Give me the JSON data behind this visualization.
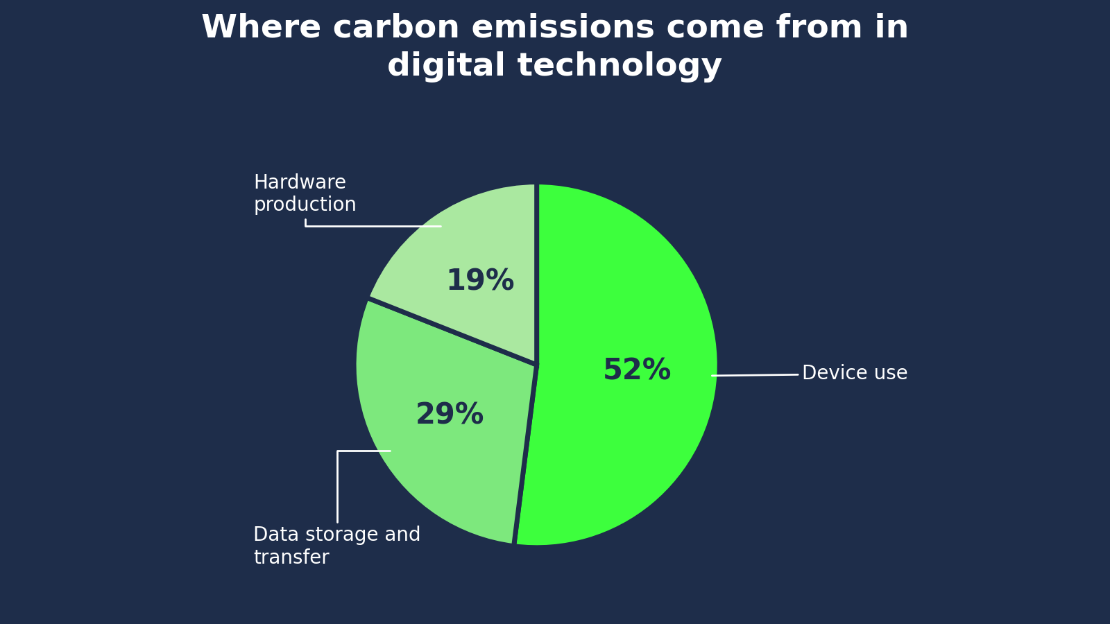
{
  "title": "Where carbon emissions come from in\ndigital technology",
  "slices": [
    52,
    29,
    19
  ],
  "labels": [
    "Device use",
    "Data storage and\ntransfer",
    "Hardware\nproduction"
  ],
  "pct_labels": [
    "52%",
    "29%",
    "19%"
  ],
  "colors": [
    "#3dff3d",
    "#7de87d",
    "#aae8a0"
  ],
  "edge_color": "#1e2d4a",
  "background_color": "#1e2d4a",
  "text_color": "#ffffff",
  "pct_color": "#1e2d4a",
  "title_fontsize": 34,
  "label_fontsize": 20,
  "pct_fontsize": 30,
  "startangle": 90
}
